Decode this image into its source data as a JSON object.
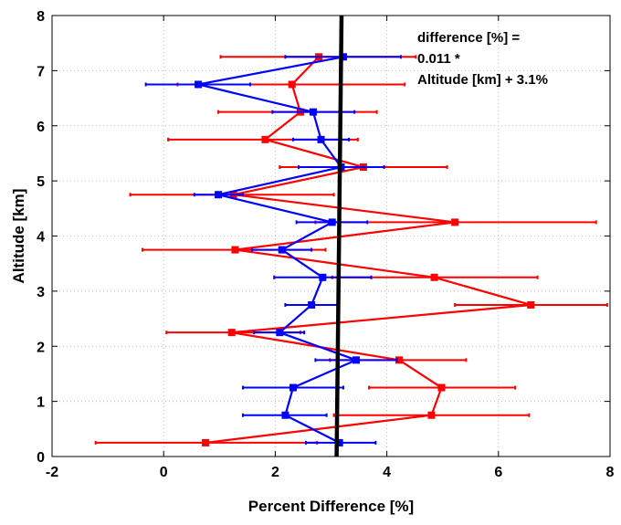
{
  "chart_data": {
    "type": "line",
    "title": "",
    "xlabel": "Percent Difference [%]",
    "ylabel": "Altitude [km]",
    "xlim": [
      -2,
      8
    ],
    "ylim": [
      0,
      8
    ],
    "xticks": [
      -2,
      0,
      2,
      4,
      6,
      8
    ],
    "yticks": [
      0,
      1,
      2,
      3,
      4,
      5,
      6,
      7,
      8
    ],
    "xtick_labels": [
      "-2",
      "0",
      "2",
      "4",
      "6",
      "8"
    ],
    "ytick_labels": [
      "0",
      "1",
      "2",
      "3",
      "4",
      "5",
      "6",
      "7",
      "8"
    ],
    "grid": true,
    "annotation_lines": [
      "difference [%] =",
      "0.011 *",
      "Altitude [km] + 3.1%"
    ],
    "series": [
      {
        "color": "#ff0000",
        "points": [
          {
            "x": 0.75,
            "y": 0.25,
            "xerr_low": -1.22,
            "xerr_high": 2.75
          },
          {
            "x": 4.8,
            "y": 0.75,
            "xerr_low": 3.05,
            "xerr_high": 6.55
          },
          {
            "x": 4.98,
            "y": 1.25,
            "xerr_low": 3.68,
            "xerr_high": 6.3
          },
          {
            "x": 4.22,
            "y": 1.75,
            "xerr_low": 2.98,
            "xerr_high": 5.42
          },
          {
            "x": 1.22,
            "y": 2.25,
            "xerr_low": 0.05,
            "xerr_high": 2.45
          },
          {
            "x": 6.58,
            "y": 2.75,
            "xerr_low": 5.22,
            "xerr_high": 7.95
          },
          {
            "x": 4.85,
            "y": 3.25,
            "xerr_low": 3.02,
            "xerr_high": 6.7
          },
          {
            "x": 1.28,
            "y": 3.75,
            "xerr_low": -0.38,
            "xerr_high": 2.9
          },
          {
            "x": 5.22,
            "y": 4.25,
            "xerr_low": 2.72,
            "xerr_high": 7.75
          },
          {
            "x": 1.25,
            "y": 4.75,
            "xerr_low": -0.6,
            "xerr_high": 3.05
          },
          {
            "x": 3.58,
            "y": 5.25,
            "xerr_low": 2.08,
            "xerr_high": 5.08
          },
          {
            "x": 1.82,
            "y": 5.75,
            "xerr_low": 0.08,
            "xerr_high": 3.48
          },
          {
            "x": 2.45,
            "y": 6.25,
            "xerr_low": 0.98,
            "xerr_high": 3.82
          },
          {
            "x": 2.3,
            "y": 6.75,
            "xerr_low": 0.25,
            "xerr_high": 4.32
          },
          {
            "x": 2.78,
            "y": 7.25,
            "xerr_low": 1.02,
            "xerr_high": 4.52
          }
        ]
      },
      {
        "color": "#0000ff",
        "points": [
          {
            "x": 3.15,
            "y": 0.25,
            "xerr_low": 2.55,
            "xerr_high": 3.8
          },
          {
            "x": 2.18,
            "y": 0.75,
            "xerr_low": 1.42,
            "xerr_high": 2.92
          },
          {
            "x": 2.32,
            "y": 1.25,
            "xerr_low": 1.42,
            "xerr_high": 3.22
          },
          {
            "x": 3.45,
            "y": 1.75,
            "xerr_low": 2.72,
            "xerr_high": 4.18
          },
          {
            "x": 2.08,
            "y": 2.25,
            "xerr_low": 1.62,
            "xerr_high": 2.52
          },
          {
            "x": 2.65,
            "y": 2.75,
            "xerr_low": 2.18,
            "xerr_high": 3.12
          },
          {
            "x": 2.85,
            "y": 3.25,
            "xerr_low": 1.98,
            "xerr_high": 3.72
          },
          {
            "x": 2.12,
            "y": 3.75,
            "xerr_low": 1.58,
            "xerr_high": 2.65
          },
          {
            "x": 3.02,
            "y": 4.25,
            "xerr_low": 2.38,
            "xerr_high": 3.65
          },
          {
            "x": 0.98,
            "y": 4.75,
            "xerr_low": 0.55,
            "xerr_high": 1.42
          },
          {
            "x": 3.18,
            "y": 5.25,
            "xerr_low": 2.42,
            "xerr_high": 3.95
          },
          {
            "x": 2.82,
            "y": 5.75,
            "xerr_low": 2.32,
            "xerr_high": 3.32
          },
          {
            "x": 2.68,
            "y": 6.25,
            "xerr_low": 1.95,
            "xerr_high": 3.42
          },
          {
            "x": 0.62,
            "y": 6.75,
            "xerr_low": -0.32,
            "xerr_high": 1.55
          },
          {
            "x": 3.22,
            "y": 7.25,
            "xerr_low": 2.18,
            "xerr_high": 4.25
          }
        ]
      },
      {
        "color": "#000000",
        "points": [
          {
            "x": 3.1,
            "y": 0
          },
          {
            "x": 3.188,
            "y": 8
          }
        ]
      }
    ]
  }
}
